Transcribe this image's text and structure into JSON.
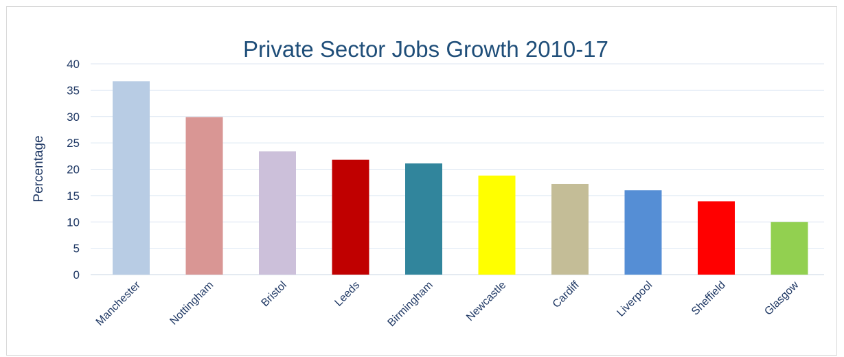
{
  "chart_data": {
    "type": "bar",
    "title": "Private Sector Jobs Growth 2010-17",
    "xlabel": "",
    "ylabel": "Percentage",
    "ylim": [
      0,
      40
    ],
    "yticks": [
      0,
      5,
      10,
      15,
      20,
      25,
      30,
      35,
      40
    ],
    "grid": true,
    "legend": "none",
    "categories": [
      "Manchester",
      "Nottingham",
      "Bristol",
      "Leeds",
      "Birmingham",
      "Newcastle",
      "Cardiff",
      "Liverpool",
      "Sheffield",
      "Glasgow"
    ],
    "values": [
      36.7,
      29.9,
      23.4,
      21.8,
      21.1,
      18.8,
      17.2,
      16.0,
      13.9,
      10.0
    ],
    "colors": [
      "#b8cce4",
      "#d99694",
      "#ccc0da",
      "#c00000",
      "#31859c",
      "#ffff00",
      "#c4bd97",
      "#558ed5",
      "#ff0000",
      "#92d050"
    ]
  }
}
